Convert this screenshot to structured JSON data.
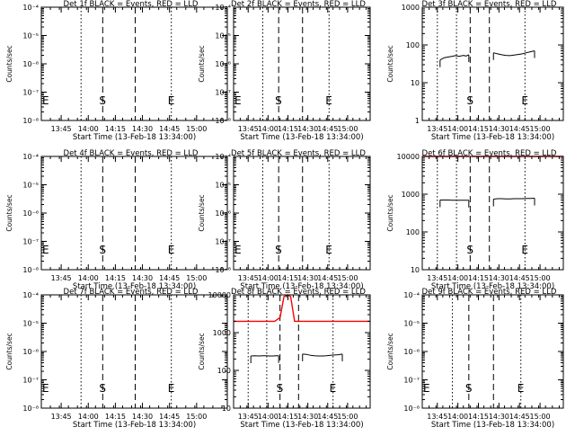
{
  "colors": {
    "events": "#000000",
    "lld": "#ff0000",
    "axes": "#000000",
    "background": "#ffffff"
  },
  "chart_data": [
    {
      "type": "line",
      "scale_y": "log",
      "title": "Det 1f BLACK = Events, RED = LLD",
      "xlabel": "Start Time (13-Feb-18 13:34:00)",
      "ylabel": "Counts/sec",
      "xlim": [
        "13:34",
        "15:17"
      ],
      "xticks": [
        "13:45",
        "14:00",
        "14:15",
        "14:30",
        "14:45",
        "15:00"
      ],
      "ylim": [
        1e-08,
        0.0001
      ],
      "yticks": [
        "10⁻⁸",
        "10⁻⁷",
        "10⁻⁶",
        "10⁻⁵",
        "10⁻⁴"
      ],
      "markers": [
        {
          "label": "E",
          "time": "13:34",
          "style": "dotted"
        },
        {
          "label": "",
          "time": "13:56",
          "style": "dotted"
        },
        {
          "label": "S",
          "time": "14:08",
          "style": "dashed"
        },
        {
          "label": "",
          "time": "14:26",
          "style": "dashed"
        },
        {
          "label": "E",
          "time": "14:46",
          "style": "dotted"
        }
      ],
      "series": []
    },
    {
      "type": "line",
      "scale_y": "log",
      "title": "Det 2f BLACK = Events, RED = LLD",
      "xlabel": "Start Time (13-Feb-18 13:34:00)",
      "ylabel": "Counts/sec",
      "xlim": [
        "13:34",
        "15:17"
      ],
      "xticks": [
        "13:45",
        "14:00",
        "14:15",
        "14:30",
        "14:45",
        "15:00"
      ],
      "ylim": [
        1e-08,
        0.0001
      ],
      "yticks": [
        "10⁻⁸",
        "10⁻⁷",
        "10⁻⁶",
        "10⁻⁵",
        "10⁻⁴"
      ],
      "markers": [
        {
          "label": "E",
          "time": "13:34",
          "style": "dotted"
        },
        {
          "label": "",
          "time": "13:56",
          "style": "dotted"
        },
        {
          "label": "S",
          "time": "14:08",
          "style": "dashed"
        },
        {
          "label": "",
          "time": "14:26",
          "style": "dashed"
        },
        {
          "label": "E",
          "time": "14:46",
          "style": "dotted"
        }
      ],
      "series": []
    },
    {
      "type": "line",
      "scale_y": "log",
      "title": "Det 3f BLACK = Events, RED = LLD",
      "xlabel": "Start Time (13-Feb-18 13:34:00)",
      "ylabel": "Counts/sec",
      "xlim": [
        "13:34",
        "15:17"
      ],
      "xticks": [
        "13:45",
        "14:00",
        "14:15",
        "14:30",
        "14:45",
        "15:00"
      ],
      "ylim": [
        1,
        1000
      ],
      "yticks": [
        "1",
        "10",
        "100",
        "1000"
      ],
      "markers": [
        {
          "label": "",
          "time": "13:45",
          "style": "dotted"
        },
        {
          "label": "",
          "time": "13:59",
          "style": "dotted"
        },
        {
          "label": "S",
          "time": "14:09",
          "style": "dashed"
        },
        {
          "label": "",
          "time": "14:23",
          "style": "dashed"
        },
        {
          "label": "E",
          "time": "14:49",
          "style": "dotted"
        }
      ],
      "series": [
        {
          "color": "#000000",
          "x": [
            "13:47",
            "13:50",
            "13:53",
            "13:56",
            "13:58",
            "14:01",
            "14:04",
            "14:06",
            "14:08"
          ],
          "y": [
            40,
            46,
            48,
            50,
            52,
            50,
            53,
            51,
            55
          ]
        },
        {
          "color": "#000000",
          "x": [
            "14:26",
            "14:29",
            "14:32",
            "14:35",
            "14:38",
            "14:41",
            "14:44",
            "14:47",
            "14:50",
            "14:53",
            "14:56"
          ],
          "y": [
            62,
            58,
            55,
            53,
            52,
            54,
            56,
            58,
            62,
            66,
            70
          ]
        }
      ]
    },
    {
      "type": "line",
      "scale_y": "log",
      "title": "Det 4f BLACK = Events, RED = LLD",
      "xlabel": "Start Time (13-Feb-18 13:34:00)",
      "ylabel": "Counts/sec",
      "xlim": [
        "13:34",
        "15:17"
      ],
      "xticks": [
        "13:45",
        "14:00",
        "14:15",
        "14:30",
        "14:45",
        "15:00"
      ],
      "ylim": [
        1e-08,
        0.0001
      ],
      "yticks": [
        "10⁻⁸",
        "10⁻⁷",
        "10⁻⁶",
        "10⁻⁵",
        "10⁻⁴"
      ],
      "markers": [
        {
          "label": "E",
          "time": "13:34",
          "style": "dotted"
        },
        {
          "label": "",
          "time": "13:56",
          "style": "dotted"
        },
        {
          "label": "S",
          "time": "14:08",
          "style": "dashed"
        },
        {
          "label": "",
          "time": "14:26",
          "style": "dashed"
        },
        {
          "label": "E",
          "time": "14:46",
          "style": "dotted"
        }
      ],
      "series": []
    },
    {
      "type": "line",
      "scale_y": "log",
      "title": "Det 5f BLACK = Events, RED = LLD",
      "xlabel": "Start Time (13-Feb-18 13:34:00)",
      "ylabel": "Counts/sec",
      "xlim": [
        "13:34",
        "15:17"
      ],
      "xticks": [
        "13:45",
        "14:00",
        "14:15",
        "14:30",
        "14:45",
        "15:00"
      ],
      "ylim": [
        1e-08,
        0.0001
      ],
      "yticks": [
        "10⁻⁸",
        "10⁻⁷",
        "10⁻⁶",
        "10⁻⁵",
        "10⁻⁴"
      ],
      "markers": [
        {
          "label": "E",
          "time": "13:34",
          "style": "dotted"
        },
        {
          "label": "",
          "time": "13:56",
          "style": "dotted"
        },
        {
          "label": "S",
          "time": "14:08",
          "style": "dashed"
        },
        {
          "label": "",
          "time": "14:26",
          "style": "dashed"
        },
        {
          "label": "E",
          "time": "14:46",
          "style": "dotted"
        }
      ],
      "series": []
    },
    {
      "type": "line",
      "scale_y": "log",
      "title": "Det 6f BLACK = Events, RED = LLD",
      "xlabel": "Start Time (13-Feb-18 13:34:00)",
      "ylabel": "Counts/sec",
      "xlim": [
        "13:34",
        "15:17"
      ],
      "xticks": [
        "13:45",
        "14:00",
        "14:15",
        "14:30",
        "14:45",
        "15:00"
      ],
      "ylim": [
        10,
        10000
      ],
      "yticks": [
        "10",
        "100",
        "1000",
        "10000"
      ],
      "markers": [
        {
          "label": "",
          "time": "13:45",
          "style": "dotted"
        },
        {
          "label": "",
          "time": "13:59",
          "style": "dotted"
        },
        {
          "label": "S",
          "time": "14:09",
          "style": "dashed"
        },
        {
          "label": "",
          "time": "14:23",
          "style": "dashed"
        },
        {
          "label": "E",
          "time": "14:49",
          "style": "dotted"
        }
      ],
      "series": [
        {
          "color": "#000000",
          "x": [
            "13:47",
            "13:50",
            "13:53",
            "13:56",
            "13:58",
            "14:01",
            "14:04",
            "14:06",
            "14:08"
          ],
          "y": [
            700,
            700,
            700,
            690,
            690,
            690,
            690,
            690,
            690
          ]
        },
        {
          "color": "#000000",
          "x": [
            "14:26",
            "14:29",
            "14:32",
            "14:35",
            "14:38",
            "14:41",
            "14:44",
            "14:47",
            "14:50",
            "14:53",
            "14:56"
          ],
          "y": [
            740,
            760,
            760,
            750,
            750,
            760,
            760,
            760,
            770,
            770,
            780
          ]
        },
        {
          "color": "#ff0000",
          "x": [
            "13:34",
            "13:50",
            "14:00",
            "14:08"
          ],
          "y": [
            10000,
            10000,
            10000,
            10000
          ]
        },
        {
          "color": "#ff0000",
          "x": [
            "14:10",
            "14:30",
            "14:50",
            "15:17"
          ],
          "y": [
            10000,
            10000,
            10000,
            10000
          ]
        }
      ]
    },
    {
      "type": "line",
      "scale_y": "log",
      "title": "Det 7f BLACK = Events, RED = LLD",
      "xlabel": "Start Time (13-Feb-18 13:34:00)",
      "ylabel": "Counts/sec",
      "xlim": [
        "13:34",
        "15:17"
      ],
      "xticks": [
        "13:45",
        "14:00",
        "14:15",
        "14:30",
        "14:45",
        "15:00"
      ],
      "ylim": [
        1e-08,
        0.0001
      ],
      "yticks": [
        "10⁻⁸",
        "10⁻⁷",
        "10⁻⁶",
        "10⁻⁵",
        "10⁻⁴"
      ],
      "markers": [
        {
          "label": "E",
          "time": "13:34",
          "style": "dotted"
        },
        {
          "label": "",
          "time": "13:56",
          "style": "dotted"
        },
        {
          "label": "S",
          "time": "14:08",
          "style": "dashed"
        },
        {
          "label": "",
          "time": "14:26",
          "style": "dashed"
        },
        {
          "label": "E",
          "time": "14:46",
          "style": "dotted"
        }
      ],
      "series": []
    },
    {
      "type": "line",
      "scale_y": "log",
      "title": "Det 8f BLACK = Events, RED = LLD",
      "xlabel": "Start Time (13-Feb-18 13:34:00)",
      "ylabel": "Counts/sec",
      "xlim": [
        "13:34",
        "15:17"
      ],
      "xticks": [
        "13:45",
        "14:00",
        "14:15",
        "14:30",
        "14:45",
        "15:00"
      ],
      "ylim": [
        10,
        10000
      ],
      "yticks": [
        "10",
        "100",
        "1000",
        "10000"
      ],
      "markers": [
        {
          "label": "",
          "time": "13:45",
          "style": "dotted"
        },
        {
          "label": "",
          "time": "13:59",
          "style": "dotted"
        },
        {
          "label": "S",
          "time": "14:09",
          "style": "dashed"
        },
        {
          "label": "",
          "time": "14:23",
          "style": "dashed"
        },
        {
          "label": "E",
          "time": "14:49",
          "style": "dotted"
        }
      ],
      "series": [
        {
          "color": "#000000",
          "x": [
            "13:47",
            "13:50",
            "13:53",
            "13:56",
            "13:58",
            "14:01",
            "14:04",
            "14:06",
            "14:08"
          ],
          "y": [
            240,
            245,
            240,
            245,
            245,
            240,
            240,
            245,
            245
          ]
        },
        {
          "color": "#000000",
          "x": [
            "14:26",
            "14:29",
            "14:32",
            "14:35",
            "14:38",
            "14:41",
            "14:44",
            "14:47",
            "14:50",
            "14:53",
            "14:56"
          ],
          "y": [
            270,
            265,
            250,
            245,
            240,
            240,
            245,
            250,
            255,
            260,
            270
          ]
        },
        {
          "color": "#ff0000",
          "x": [
            "13:34",
            "13:50",
            "14:05",
            "14:09",
            "14:12",
            "14:15",
            "14:17",
            "14:20",
            "14:35",
            "15:17"
          ],
          "y": [
            2000,
            2000,
            2000,
            2500,
            9000,
            10000,
            9000,
            2000,
            2000,
            2000
          ]
        }
      ]
    },
    {
      "type": "line",
      "scale_y": "log",
      "title": "Det 9f BLACK = Events, RED = LLD",
      "xlabel": "Start Time (13-Feb-18 13:34:00)",
      "ylabel": "Counts/sec",
      "xlim": [
        "13:34",
        "15:17"
      ],
      "xticks": [
        "13:45",
        "14:00",
        "14:15",
        "14:30",
        "14:45",
        "15:00"
      ],
      "ylim": [
        1e-08,
        0.0001
      ],
      "yticks": [
        "10⁻⁸",
        "10⁻⁷",
        "10⁻⁶",
        "10⁻⁵",
        "10⁻⁴"
      ],
      "markers": [
        {
          "label": "E",
          "time": "13:34",
          "style": "dotted"
        },
        {
          "label": "",
          "time": "13:56",
          "style": "dotted"
        },
        {
          "label": "S",
          "time": "14:08",
          "style": "dashed"
        },
        {
          "label": "",
          "time": "14:26",
          "style": "dashed"
        },
        {
          "label": "E",
          "time": "14:46",
          "style": "dotted"
        }
      ],
      "series": []
    }
  ]
}
